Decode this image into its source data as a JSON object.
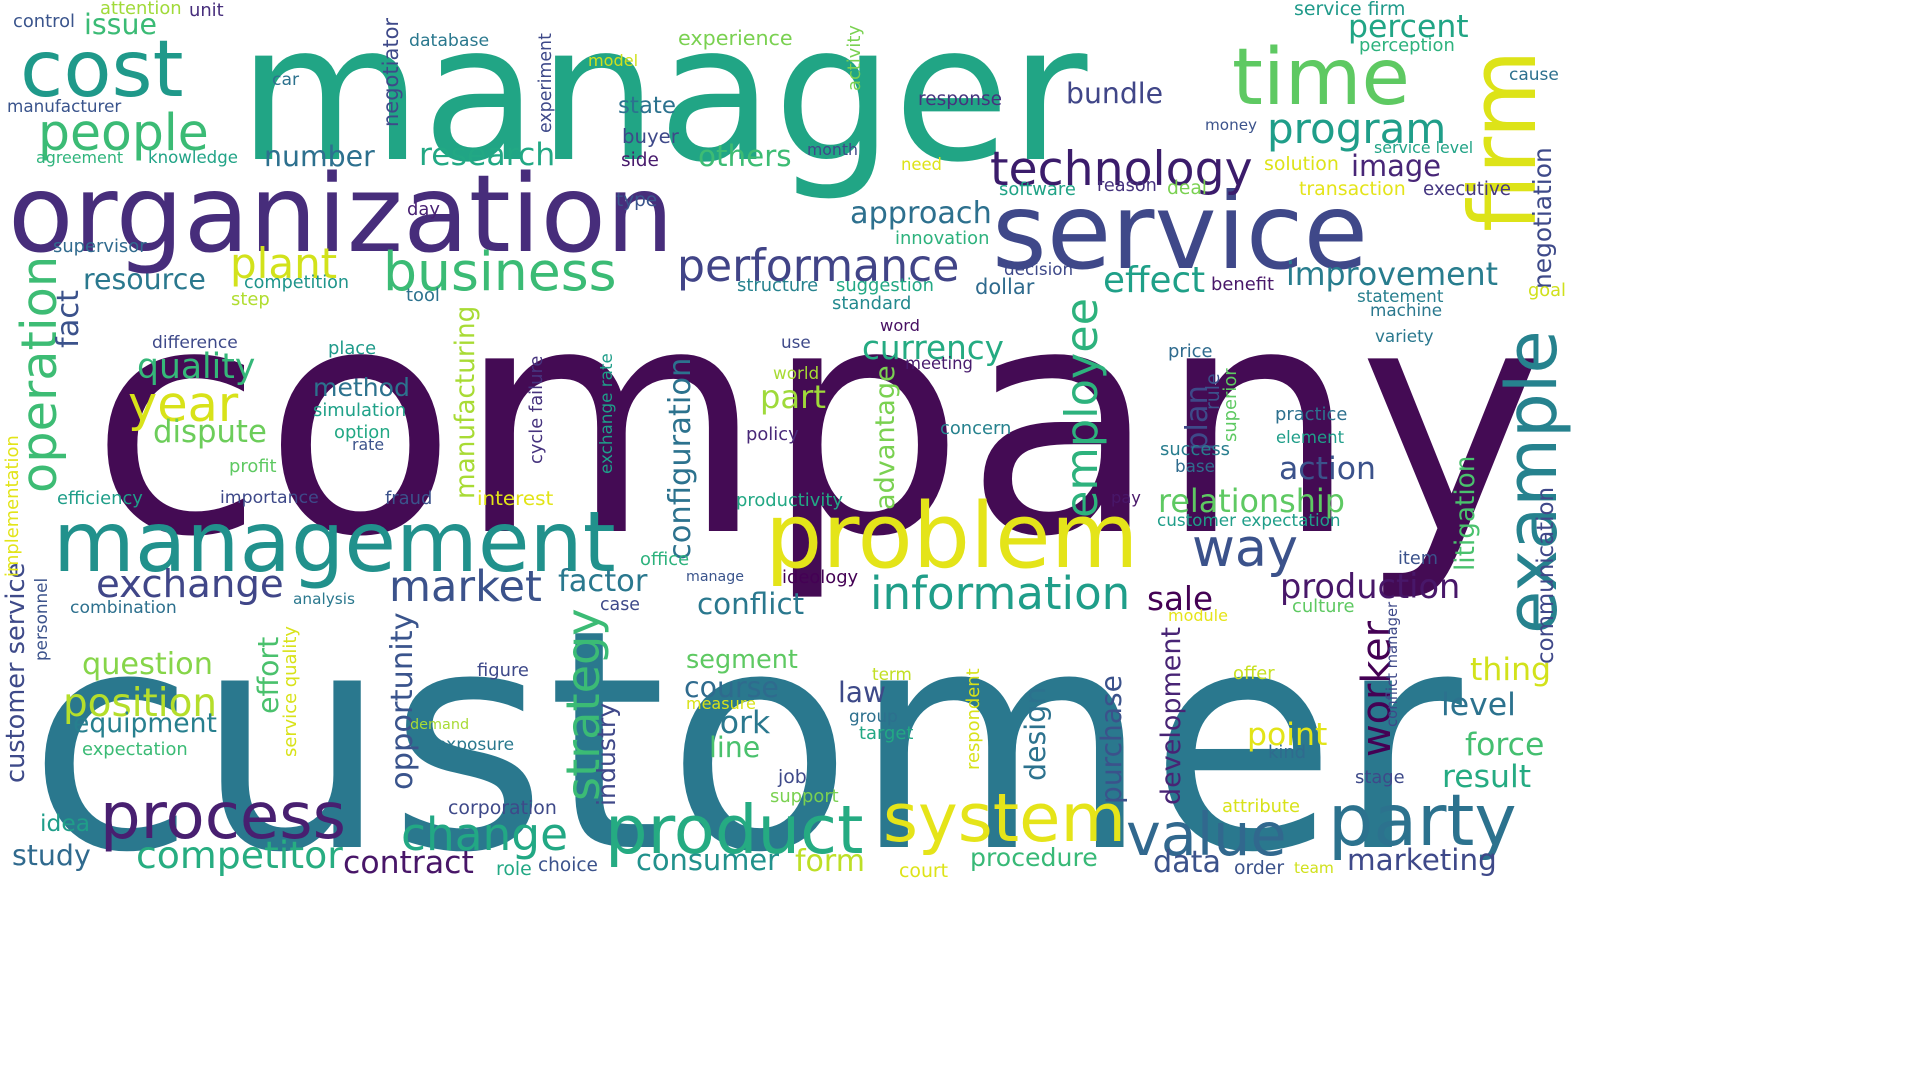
{
  "words": [
    {
      "id": "company",
      "text": "company",
      "color": "#440b54"
    },
    {
      "id": "customer",
      "text": "customer",
      "color": "#2a788e"
    },
    {
      "id": "manager",
      "text": "manager",
      "color": "#21a585"
    },
    {
      "id": "organization",
      "text": "organization",
      "color": "#472d7b"
    },
    {
      "id": "service",
      "text": "service",
      "color": "#3f4889"
    },
    {
      "id": "management",
      "text": "management",
      "color": "#21918c"
    },
    {
      "id": "problem",
      "text": "problem",
      "color": "#e4e419"
    },
    {
      "id": "product",
      "text": "product",
      "color": "#25ab82"
    },
    {
      "id": "system",
      "text": "system",
      "color": "#e5e419"
    },
    {
      "id": "party",
      "text": "party",
      "color": "#2c728e"
    },
    {
      "id": "process",
      "text": "process",
      "color": "#481f70"
    },
    {
      "id": "value",
      "text": "value",
      "color": "#31688e"
    },
    {
      "id": "cost",
      "text": "cost",
      "color": "#1f998a"
    },
    {
      "id": "time",
      "text": "time",
      "color": "#5ec962"
    },
    {
      "id": "firm",
      "text": "firm",
      "color": "#dde318"
    },
    {
      "id": "example",
      "text": "example",
      "color": "#26828e"
    },
    {
      "id": "people",
      "text": "people",
      "color": "#3bbb75"
    },
    {
      "id": "business",
      "text": "business",
      "color": "#3bbb75"
    },
    {
      "id": "performance",
      "text": "performance",
      "color": "#414487"
    },
    {
      "id": "technology",
      "text": "technology",
      "color": "#3b1c6b"
    },
    {
      "id": "year",
      "text": "year",
      "color": "#d8e219"
    },
    {
      "id": "way",
      "text": "way",
      "color": "#3b528b"
    },
    {
      "id": "change",
      "text": "change",
      "color": "#22a884"
    },
    {
      "id": "information",
      "text": "information",
      "color": "#1f9e89"
    },
    {
      "id": "employee",
      "text": "employee",
      "color": "#2db27d"
    },
    {
      "id": "operation",
      "text": "operation",
      "color": "#3dbc74"
    },
    {
      "id": "market",
      "text": "market",
      "color": "#3b528b"
    },
    {
      "id": "exchange",
      "text": "exchange",
      "color": "#404688"
    },
    {
      "id": "program",
      "text": "program",
      "color": "#1f9e89"
    },
    {
      "id": "competitor",
      "text": "competitor",
      "color": "#27ad81"
    },
    {
      "id": "position",
      "text": "position",
      "color": "#b5de2b"
    },
    {
      "id": "plant",
      "text": "plant",
      "color": "#d2e21b"
    },
    {
      "id": "strategy",
      "text": "strategy",
      "color": "#3bbb75"
    },
    {
      "id": "fact",
      "text": "fact",
      "color": "#3b528b"
    },
    {
      "id": "contract",
      "text": "contract",
      "color": "#481668"
    },
    {
      "id": "improvement",
      "text": "improvement",
      "color": "#287d8e"
    },
    {
      "id": "relationship",
      "text": "relationship",
      "color": "#5ec962"
    },
    {
      "id": "effect",
      "text": "effect",
      "color": "#1fa088"
    },
    {
      "id": "production",
      "text": "production",
      "color": "#481769"
    },
    {
      "id": "worker",
      "text": "worker",
      "color": "#440154"
    },
    {
      "id": "consumer",
      "text": "consumer",
      "color": "#21918c"
    },
    {
      "id": "approach",
      "text": "approach",
      "color": "#2d708e"
    },
    {
      "id": "quality",
      "text": "quality",
      "color": "#35b779"
    },
    {
      "id": "research",
      "text": "research",
      "color": "#22a884"
    },
    {
      "id": "number",
      "text": "number",
      "color": "#2d708e"
    },
    {
      "id": "others",
      "text": "others",
      "color": "#3dbc74"
    },
    {
      "id": "image",
      "text": "image",
      "color": "#482677"
    },
    {
      "id": "bundle",
      "text": "bundle",
      "color": "#404688"
    },
    {
      "id": "percent",
      "text": "percent",
      "color": "#21a585"
    },
    {
      "id": "issue",
      "text": "issue",
      "color": "#3bbb75"
    },
    {
      "id": "method",
      "text": "method",
      "color": "#2c728e"
    },
    {
      "id": "currency",
      "text": "currency",
      "color": "#25ab82"
    },
    {
      "id": "part",
      "text": "part",
      "color": "#9fda3a"
    },
    {
      "id": "dispute",
      "text": "dispute",
      "color": "#6ccd5a"
    },
    {
      "id": "resource",
      "text": "resource",
      "color": "#2a788e"
    },
    {
      "id": "configuration",
      "text": "configuration",
      "color": "#2c728e"
    },
    {
      "id": "manufacturing",
      "text": "manufacturing",
      "color": "#a8db34"
    },
    {
      "id": "advantage",
      "text": "advantage",
      "color": "#7ad151"
    },
    {
      "id": "plan",
      "text": "plan",
      "color": "#3e4989"
    },
    {
      "id": "negotiation",
      "text": "negotiation",
      "color": "#3e4a89"
    },
    {
      "id": "goal",
      "text": "goal",
      "color": "#d0e11c"
    },
    {
      "id": "action",
      "text": "action",
      "color": "#3b528b"
    },
    {
      "id": "litigation",
      "text": "litigation",
      "color": "#4ac16d"
    },
    {
      "id": "communication",
      "text": "communication",
      "color": "#3f4889"
    },
    {
      "id": "thing",
      "text": "thing",
      "color": "#d2e21b"
    },
    {
      "id": "level",
      "text": "level",
      "color": "#2c728e"
    },
    {
      "id": "force",
      "text": "force",
      "color": "#44bf70"
    },
    {
      "id": "result",
      "text": "result",
      "color": "#25ab82"
    },
    {
      "id": "marketing",
      "text": "marketing",
      "color": "#3e4989"
    },
    {
      "id": "sale",
      "text": "sale",
      "color": "#440154"
    },
    {
      "id": "factor",
      "text": "factor",
      "color": "#2a788e"
    },
    {
      "id": "conflict",
      "text": "conflict",
      "color": "#2a788e"
    },
    {
      "id": "segment",
      "text": "segment",
      "color": "#5ec962"
    },
    {
      "id": "course",
      "text": "course",
      "color": "#2f6b8e"
    },
    {
      "id": "work",
      "text": "work",
      "color": "#2a788e"
    },
    {
      "id": "line",
      "text": "line",
      "color": "#4ac16d"
    },
    {
      "id": "law",
      "text": "law",
      "color": "#3e4a89"
    },
    {
      "id": "point",
      "text": "point",
      "color": "#e2e418"
    },
    {
      "id": "purchase",
      "text": "purchase",
      "color": "#3b528b"
    },
    {
      "id": "design",
      "text": "design",
      "color": "#2c728e"
    },
    {
      "id": "development",
      "text": "development",
      "color": "#482475"
    },
    {
      "id": "question",
      "text": "question",
      "color": "#86d549"
    },
    {
      "id": "equipment",
      "text": "equipment",
      "color": "#277f8e"
    },
    {
      "id": "effort",
      "text": "effort",
      "color": "#4ac16d"
    },
    {
      "id": "opportunity",
      "text": "opportunity",
      "color": "#3a548c"
    },
    {
      "id": "industry",
      "text": "industry",
      "color": "#3f4889"
    },
    {
      "id": "customer_service",
      "text": "customer service",
      "color": "#3e4a89"
    },
    {
      "id": "idea",
      "text": "idea",
      "color": "#1f9e89"
    },
    {
      "id": "study",
      "text": "study",
      "color": "#306a8e"
    },
    {
      "id": "form",
      "text": "form",
      "color": "#bddf26"
    },
    {
      "id": "procedure",
      "text": "procedure",
      "color": "#38b977"
    },
    {
      "id": "data",
      "text": "data",
      "color": "#3b528b"
    },
    {
      "id": "experience",
      "text": "experience",
      "color": "#7ad151"
    },
    {
      "id": "state",
      "text": "state",
      "color": "#2c728e"
    },
    {
      "id": "buyer",
      "text": "buyer",
      "color": "#3e4989"
    },
    {
      "id": "database",
      "text": "database",
      "color": "#2a788e"
    },
    {
      "id": "model",
      "text": "model",
      "color": "#d0e11c"
    },
    {
      "id": "car",
      "text": "car",
      "color": "#2c728e"
    },
    {
      "id": "negotiator",
      "text": "negotiator",
      "color": "#3e4989"
    },
    {
      "id": "experiment",
      "text": "experiment",
      "color": "#3e4989"
    },
    {
      "id": "activity",
      "text": "activity",
      "color": "#7ad151"
    },
    {
      "id": "response",
      "text": "response",
      "color": "#46337e"
    },
    {
      "id": "service_firm",
      "text": "service firm",
      "color": "#1f9a8a"
    },
    {
      "id": "perception",
      "text": "perception",
      "color": "#2db27d"
    },
    {
      "id": "cause",
      "text": "cause",
      "color": "#2d708e"
    },
    {
      "id": "money",
      "text": "money",
      "color": "#3b528b"
    },
    {
      "id": "service_level",
      "text": "service level",
      "color": "#20a386"
    },
    {
      "id": "solution",
      "text": "solution",
      "color": "#dde318"
    },
    {
      "id": "transaction",
      "text": "transaction",
      "color": "#e4e419"
    },
    {
      "id": "executive",
      "text": "executive",
      "color": "#453781"
    },
    {
      "id": "reason",
      "text": "reason",
      "color": "#46337e"
    },
    {
      "id": "deal",
      "text": "deal",
      "color": "#7ad151"
    },
    {
      "id": "software",
      "text": "software",
      "color": "#20a386"
    },
    {
      "id": "month",
      "text": "month",
      "color": "#3e4989"
    },
    {
      "id": "need",
      "text": "need",
      "color": "#dde318"
    },
    {
      "id": "side",
      "text": "side",
      "color": "#481b6d"
    },
    {
      "id": "type",
      "text": "type",
      "color": "#3a548c"
    },
    {
      "id": "day",
      "text": "day",
      "color": "#482173"
    },
    {
      "id": "control",
      "text": "control",
      "color": "#3a548c"
    },
    {
      "id": "attention",
      "text": "attention",
      "color": "#a0da39"
    },
    {
      "id": "unit",
      "text": "unit",
      "color": "#472e7c"
    },
    {
      "id": "manufacturer",
      "text": "manufacturer",
      "color": "#3a548c"
    },
    {
      "id": "agreement",
      "text": "agreement",
      "color": "#2fb47c"
    },
    {
      "id": "knowledge",
      "text": "knowledge",
      "color": "#20a386"
    },
    {
      "id": "supervisor",
      "text": "supervisor",
      "color": "#306a8e"
    },
    {
      "id": "competition",
      "text": "competition",
      "color": "#1f958b"
    },
    {
      "id": "step",
      "text": "step",
      "color": "#b0dd2f"
    },
    {
      "id": "tool",
      "text": "tool",
      "color": "#2c728e"
    },
    {
      "id": "structure",
      "text": "structure",
      "color": "#26828e"
    },
    {
      "id": "suggestion",
      "text": "suggestion",
      "color": "#22a884"
    },
    {
      "id": "standard",
      "text": "standard",
      "color": "#23898e"
    },
    {
      "id": "decision",
      "text": "decision",
      "color": "#3e4989"
    },
    {
      "id": "dollar",
      "text": "dollar",
      "color": "#2f6b8e"
    },
    {
      "id": "innovation",
      "text": "innovation",
      "color": "#2db27d"
    },
    {
      "id": "benefit",
      "text": "benefit",
      "color": "#481769"
    },
    {
      "id": "statement",
      "text": "statement",
      "color": "#277f8e"
    },
    {
      "id": "machine",
      "text": "machine",
      "color": "#2a788e"
    },
    {
      "id": "variety",
      "text": "variety",
      "color": "#2a788e"
    },
    {
      "id": "word",
      "text": "word",
      "color": "#471063"
    },
    {
      "id": "use",
      "text": "use",
      "color": "#3e4989"
    },
    {
      "id": "world",
      "text": "world",
      "color": "#a8db34"
    },
    {
      "id": "meeting",
      "text": "meeting",
      "color": "#481b6d"
    },
    {
      "id": "policy",
      "text": "policy",
      "color": "#482878"
    },
    {
      "id": "price",
      "text": "price",
      "color": "#2f6b8e"
    },
    {
      "id": "rule",
      "text": "rule",
      "color": "#3b528b"
    },
    {
      "id": "superior",
      "text": "superior",
      "color": "#5ec962"
    },
    {
      "id": "practice",
      "text": "practice",
      "color": "#2d708e"
    },
    {
      "id": "element",
      "text": "element",
      "color": "#1f9e89"
    },
    {
      "id": "success",
      "text": "success",
      "color": "#287d8e"
    },
    {
      "id": "base",
      "text": "base",
      "color": "#2f6b8e"
    },
    {
      "id": "concern",
      "text": "concern",
      "color": "#26828e"
    },
    {
      "id": "difference",
      "text": "difference",
      "color": "#3e4989"
    },
    {
      "id": "place",
      "text": "place",
      "color": "#1f9a8a"
    },
    {
      "id": "simulation",
      "text": "simulation",
      "color": "#1fa188"
    },
    {
      "id": "option",
      "text": "option",
      "color": "#22a884"
    },
    {
      "id": "rate",
      "text": "rate",
      "color": "#3b528b"
    },
    {
      "id": "cycle_failure",
      "text": "cycle failure",
      "color": "#46337e"
    },
    {
      "id": "exchange_rate",
      "text": "exchange rate",
      "color": "#1f9e89"
    },
    {
      "id": "profit",
      "text": "profit",
      "color": "#5ec962"
    },
    {
      "id": "efficiency",
      "text": "efficiency",
      "color": "#1f9e89"
    },
    {
      "id": "importance",
      "text": "importance",
      "color": "#3e4989"
    },
    {
      "id": "fraud",
      "text": "fraud",
      "color": "#3b528b"
    },
    {
      "id": "interest",
      "text": "interest",
      "color": "#e2e418"
    },
    {
      "id": "productivity",
      "text": "productivity",
      "color": "#22a884"
    },
    {
      "id": "pay",
      "text": "pay",
      "color": "#481769"
    },
    {
      "id": "customer_expectation",
      "text": "customer expectation",
      "color": "#1f9e89"
    },
    {
      "id": "implementation",
      "text": "implementation",
      "color": "#e2e418"
    },
    {
      "id": "personnel",
      "text": "personnel",
      "color": "#3b528b"
    },
    {
      "id": "combination",
      "text": "combination",
      "color": "#2d708e"
    },
    {
      "id": "analysis",
      "text": "analysis",
      "color": "#2a788e"
    },
    {
      "id": "office",
      "text": "office",
      "color": "#2db27d"
    },
    {
      "id": "manage",
      "text": "manage",
      "color": "#3a548c"
    },
    {
      "id": "ideology",
      "text": "ideology",
      "color": "#440154"
    },
    {
      "id": "case",
      "text": "case",
      "color": "#3e4989"
    },
    {
      "id": "item",
      "text": "item",
      "color": "#3b528b"
    },
    {
      "id": "culture",
      "text": "culture",
      "color": "#5ec962"
    },
    {
      "id": "module",
      "text": "module",
      "color": "#e5e419"
    },
    {
      "id": "conflict_manager",
      "text": "conflict manager",
      "color": "#3e4989"
    },
    {
      "id": "service_quality",
      "text": "service quality",
      "color": "#d8e219"
    },
    {
      "id": "demand",
      "text": "demand",
      "color": "#a8db34"
    },
    {
      "id": "exposure",
      "text": "exposure",
      "color": "#2a788e"
    },
    {
      "id": "expectation",
      "text": "expectation",
      "color": "#3bbb75"
    },
    {
      "id": "figure",
      "text": "figure",
      "color": "#3e4989"
    },
    {
      "id": "measure",
      "text": "measure",
      "color": "#d8e219"
    },
    {
      "id": "term",
      "text": "term",
      "color": "#c2df23"
    },
    {
      "id": "group",
      "text": "group",
      "color": "#2d708e"
    },
    {
      "id": "target",
      "text": "target",
      "color": "#22a884"
    },
    {
      "id": "respondent",
      "text": "respondent",
      "color": "#d8e219"
    },
    {
      "id": "offer",
      "text": "offer",
      "color": "#c8e020"
    },
    {
      "id": "kind",
      "text": "kind",
      "color": "#2f6b8e"
    },
    {
      "id": "job",
      "text": "job",
      "color": "#3e4989"
    },
    {
      "id": "support",
      "text": "support",
      "color": "#7ad151"
    },
    {
      "id": "stage",
      "text": "stage",
      "color": "#3e4989"
    },
    {
      "id": "attribute",
      "text": "attribute",
      "color": "#d8e219"
    },
    {
      "id": "corporation",
      "text": "corporation",
      "color": "#3e4989"
    },
    {
      "id": "role",
      "text": "role",
      "color": "#22a884"
    },
    {
      "id": "choice",
      "text": "choice",
      "color": "#3b528b"
    },
    {
      "id": "court",
      "text": "court",
      "color": "#dde318"
    },
    {
      "id": "order",
      "text": "order",
      "color": "#3b528b"
    },
    {
      "id": "team",
      "text": "team",
      "color": "#d0e11c"
    }
  ]
}
